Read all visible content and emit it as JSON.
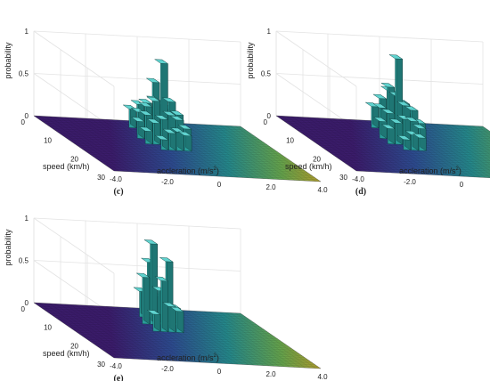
{
  "chart_data": [
    {
      "type": "bar",
      "panel_label": "(c)",
      "zlabel": "probability",
      "ylabel": "speed (km/h)",
      "xlabel": "accleration (m/s",
      "xlabel_superscript": "2",
      "xlabel_suffix": ")",
      "z_ticks": [
        "0",
        "0.5",
        "1"
      ],
      "y_ticks": [
        "0",
        "10",
        "20",
        "30"
      ],
      "x_ticks": [
        "-4.0",
        "-2.0",
        "0",
        "2.0",
        "4.0"
      ],
      "zlim": [
        0,
        1
      ],
      "ylim": [
        0,
        30
      ],
      "xlim": [
        -4,
        4
      ],
      "grid": true,
      "bars": [
        {
          "x": -0.6,
          "y": 3,
          "z": 0.22
        },
        {
          "x": -0.3,
          "y": 3,
          "z": 0.28
        },
        {
          "x": 0.0,
          "y": 3,
          "z": 0.3
        },
        {
          "x": 0.3,
          "y": 3,
          "z": 0.55
        },
        {
          "x": 0.6,
          "y": 3,
          "z": 0.3
        },
        {
          "x": 0.9,
          "y": 3,
          "z": 0.18
        },
        {
          "x": -0.6,
          "y": 6,
          "z": 0.25
        },
        {
          "x": -0.3,
          "y": 6,
          "z": 0.32
        },
        {
          "x": 0.0,
          "y": 6,
          "z": 0.4
        },
        {
          "x": 0.3,
          "y": 6,
          "z": 0.35
        },
        {
          "x": 0.6,
          "y": 6,
          "z": 0.3
        },
        {
          "x": 0.9,
          "y": 6,
          "z": 0.2
        },
        {
          "x": -0.9,
          "y": 9,
          "z": 0.2
        },
        {
          "x": -0.6,
          "y": 9,
          "z": 0.28
        },
        {
          "x": -0.3,
          "y": 9,
          "z": 0.45
        },
        {
          "x": 0.0,
          "y": 9,
          "z": 0.9
        },
        {
          "x": 0.3,
          "y": 9,
          "z": 0.45
        },
        {
          "x": 0.6,
          "y": 9,
          "z": 0.3
        },
        {
          "x": -0.9,
          "y": 12,
          "z": 0.15
        },
        {
          "x": -0.6,
          "y": 12,
          "z": 0.25
        },
        {
          "x": -0.3,
          "y": 12,
          "z": 0.3
        },
        {
          "x": 0.0,
          "y": 12,
          "z": 0.35
        },
        {
          "x": 0.3,
          "y": 12,
          "z": 0.3
        },
        {
          "x": 0.6,
          "y": 12,
          "z": 0.2
        },
        {
          "x": -0.6,
          "y": 15,
          "z": 0.12
        },
        {
          "x": -0.3,
          "y": 15,
          "z": 0.2
        },
        {
          "x": 0.0,
          "y": 15,
          "z": 0.22
        },
        {
          "x": 0.3,
          "y": 15,
          "z": 0.18
        }
      ]
    },
    {
      "type": "bar",
      "panel_label": "(d)",
      "zlabel": "probability",
      "ylabel": "speed (km/h)",
      "xlabel": "accleration (m/s",
      "xlabel_superscript": "2",
      "xlabel_suffix": ")",
      "z_ticks": [
        "0",
        "0.5",
        "1"
      ],
      "y_ticks": [
        "0",
        "10",
        "20",
        "30"
      ],
      "x_ticks": [
        "-4.0",
        "-2.0",
        "0",
        "2.0",
        "4.0"
      ],
      "zlim": [
        0,
        1
      ],
      "ylim": [
        0,
        30
      ],
      "xlim": [
        -4,
        4
      ],
      "grid": true,
      "bars": [
        {
          "x": -0.6,
          "y": 3,
          "z": 0.25
        },
        {
          "x": -0.3,
          "y": 3,
          "z": 0.35
        },
        {
          "x": 0.0,
          "y": 3,
          "z": 0.45
        },
        {
          "x": 0.3,
          "y": 3,
          "z": 0.4
        },
        {
          "x": 0.6,
          "y": 3,
          "z": 0.3
        },
        {
          "x": -0.6,
          "y": 6,
          "z": 0.3
        },
        {
          "x": -0.3,
          "y": 6,
          "z": 0.55
        },
        {
          "x": 0.0,
          "y": 6,
          "z": 0.45
        },
        {
          "x": 0.3,
          "y": 6,
          "z": 0.35
        },
        {
          "x": 0.6,
          "y": 6,
          "z": 0.25
        },
        {
          "x": -0.9,
          "y": 9,
          "z": 0.2
        },
        {
          "x": -0.6,
          "y": 9,
          "z": 0.3
        },
        {
          "x": -0.3,
          "y": 9,
          "z": 0.95
        },
        {
          "x": 0.0,
          "y": 9,
          "z": 0.4
        },
        {
          "x": 0.3,
          "y": 9,
          "z": 0.35
        },
        {
          "x": 0.6,
          "y": 9,
          "z": 0.2
        },
        {
          "x": -0.9,
          "y": 12,
          "z": 0.18
        },
        {
          "x": -0.6,
          "y": 12,
          "z": 0.25
        },
        {
          "x": -0.3,
          "y": 12,
          "z": 0.3
        },
        {
          "x": 0.0,
          "y": 12,
          "z": 0.28
        },
        {
          "x": 0.3,
          "y": 12,
          "z": 0.2
        },
        {
          "x": -0.6,
          "y": 15,
          "z": 0.12
        },
        {
          "x": -0.3,
          "y": 15,
          "z": 0.18
        },
        {
          "x": 0.0,
          "y": 15,
          "z": 0.15
        }
      ]
    },
    {
      "type": "bar",
      "panel_label": "(e)",
      "zlabel": "probability",
      "ylabel": "speed (km/h)",
      "xlabel": "accleration (m/s",
      "xlabel_superscript": "2",
      "xlabel_suffix": ")",
      "z_ticks": [
        "0",
        "0.5",
        "1"
      ],
      "y_ticks": [
        "0",
        "10",
        "20",
        "30"
      ],
      "x_ticks": [
        "-4.0",
        "-2.0",
        "0",
        "2.0",
        "4.0"
      ],
      "zlim": [
        0,
        1
      ],
      "ylim": [
        0,
        30
      ],
      "xlim": [
        -4,
        4
      ],
      "grid": true,
      "bars": [
        {
          "x": -0.3,
          "y": 4,
          "z": 0.3
        },
        {
          "x": 0.0,
          "y": 4,
          "z": 0.65
        },
        {
          "x": 0.3,
          "y": 4,
          "z": 0.25
        },
        {
          "x": -0.6,
          "y": 8,
          "z": 0.55
        },
        {
          "x": -0.3,
          "y": 8,
          "z": 0.95
        },
        {
          "x": 0.0,
          "y": 8,
          "z": 0.4
        },
        {
          "x": 0.3,
          "y": 8,
          "z": 0.75
        },
        {
          "x": 0.6,
          "y": 8,
          "z": 0.2
        },
        {
          "x": -0.6,
          "y": 12,
          "z": 0.2
        },
        {
          "x": -0.3,
          "y": 12,
          "z": 0.6
        },
        {
          "x": 0.0,
          "y": 12,
          "z": 0.3
        },
        {
          "x": 0.3,
          "y": 12,
          "z": 0.25
        }
      ]
    }
  ]
}
